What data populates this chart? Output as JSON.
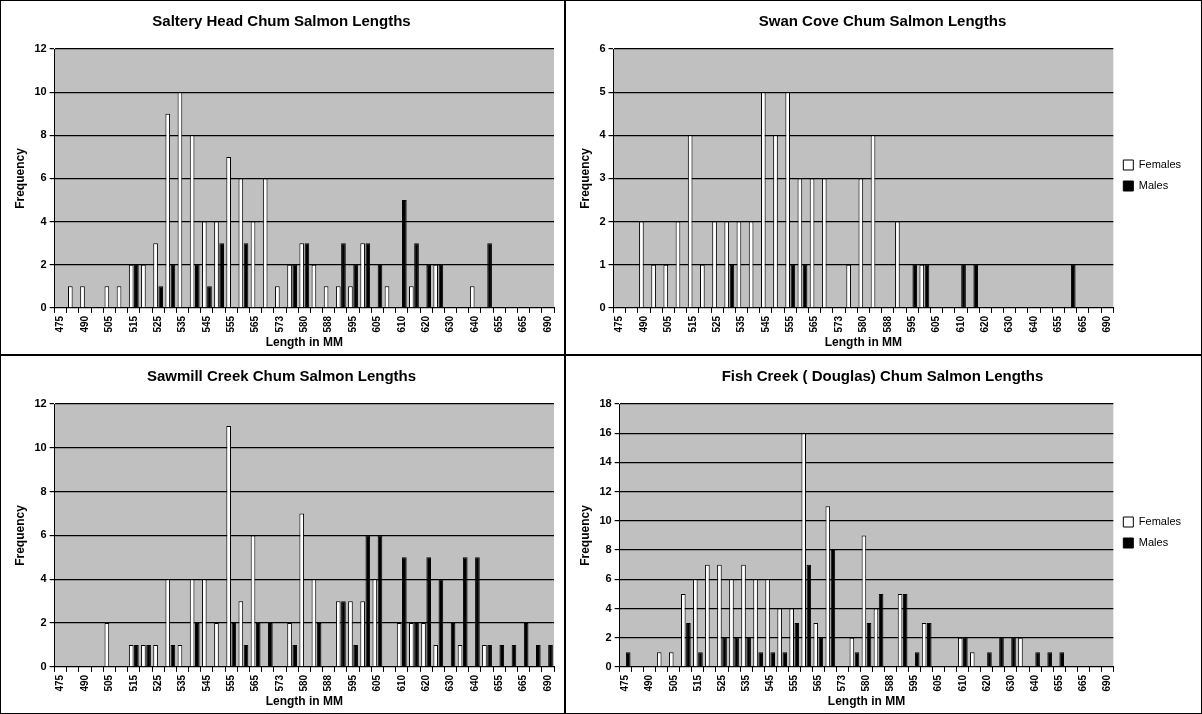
{
  "chart_data": [
    {
      "type": "bar",
      "title": "Saltery Head Chum Salmon Lengths",
      "xlabel": "Length in MM",
      "ylabel": "Frequency",
      "categories": [
        "475",
        null,
        "490",
        null,
        "505",
        null,
        "515",
        null,
        "525",
        null,
        "535",
        null,
        "545",
        null,
        "555",
        null,
        "565",
        null,
        "573",
        null,
        "580",
        null,
        "588",
        null,
        "595",
        null,
        "605",
        null,
        "610",
        null,
        "620",
        null,
        "630",
        null,
        "640",
        null,
        "655",
        null,
        "665",
        null,
        "690"
      ],
      "ylim": [
        0,
        12
      ],
      "yticks": [
        0,
        2,
        4,
        6,
        8,
        10,
        12
      ],
      "grid": "y",
      "legend": false,
      "series": [
        {
          "color": "#ffffff",
          "values": [
            0,
            1,
            1,
            0,
            1,
            1,
            2,
            2,
            3,
            9,
            10,
            8,
            4,
            4,
            7,
            6,
            4,
            6,
            1,
            2,
            3,
            2,
            1,
            1,
            1,
            3,
            0,
            1,
            0,
            1,
            0,
            2,
            0,
            0,
            1,
            0,
            0,
            0,
            0,
            0,
            0
          ]
        },
        {
          "color": "#000000",
          "values": [
            0,
            0,
            0,
            0,
            0,
            0,
            2,
            0,
            1,
            2,
            0,
            2,
            1,
            3,
            0,
            3,
            0,
            0,
            0,
            2,
            3,
            0,
            0,
            3,
            2,
            3,
            2,
            0,
            5,
            3,
            2,
            2,
            0,
            0,
            0,
            3,
            0,
            0,
            0,
            0,
            0
          ]
        }
      ]
    },
    {
      "type": "bar",
      "title": "Swan Cove Chum Salmon Lengths",
      "xlabel": "Length in MM",
      "ylabel": "Frequency",
      "categories": [
        "475",
        null,
        "490",
        null,
        "505",
        null,
        "515",
        null,
        "525",
        null,
        "535",
        null,
        "545",
        null,
        "555",
        null,
        "565",
        null,
        "573",
        null,
        "580",
        null,
        "588",
        null,
        "595",
        null,
        "605",
        null,
        "610",
        null,
        "620",
        null,
        "630",
        null,
        "640",
        null,
        "655",
        null,
        "665",
        null,
        "690"
      ],
      "ylim": [
        0,
        6
      ],
      "yticks": [
        0,
        1,
        2,
        3,
        4,
        5,
        6
      ],
      "grid": "y",
      "legend": "right",
      "series": [
        {
          "name": "Females",
          "color": "#ffffff",
          "values": [
            0,
            0,
            2,
            1,
            1,
            2,
            4,
            1,
            2,
            2,
            2,
            2,
            5,
            4,
            5,
            3,
            3,
            3,
            0,
            1,
            3,
            4,
            0,
            2,
            0,
            1,
            0,
            0,
            0,
            0,
            0,
            0,
            0,
            0,
            0,
            0,
            0,
            0,
            0,
            0,
            0
          ]
        },
        {
          "name": "Males",
          "color": "#000000",
          "values": [
            0,
            0,
            0,
            0,
            0,
            0,
            0,
            0,
            0,
            1,
            0,
            0,
            0,
            0,
            1,
            1,
            0,
            0,
            0,
            0,
            0,
            0,
            0,
            0,
            1,
            1,
            0,
            0,
            1,
            1,
            0,
            0,
            0,
            0,
            0,
            0,
            0,
            1,
            0,
            0,
            0
          ]
        }
      ]
    },
    {
      "type": "bar",
      "title": "Sawmill Creek Chum Salmon Lengths",
      "xlabel": "Length in MM",
      "ylabel": "Frequency",
      "categories": [
        "475",
        null,
        "490",
        null,
        "505",
        null,
        "515",
        null,
        "525",
        null,
        "535",
        null,
        "545",
        null,
        "555",
        null,
        "565",
        null,
        "573",
        null,
        "580",
        null,
        "588",
        null,
        "595",
        null,
        "605",
        null,
        "610",
        null,
        "620",
        null,
        "630",
        null,
        "640",
        null,
        "655",
        null,
        "665",
        null,
        "690"
      ],
      "ylim": [
        0,
        12
      ],
      "yticks": [
        0,
        2,
        4,
        6,
        8,
        10,
        12
      ],
      "grid": "y",
      "legend": false,
      "series": [
        {
          "color": "#ffffff",
          "values": [
            0,
            0,
            0,
            0,
            2,
            0,
            1,
            1,
            1,
            4,
            1,
            4,
            4,
            2,
            11,
            3,
            6,
            0,
            0,
            2,
            7,
            4,
            0,
            3,
            3,
            3,
            4,
            0,
            2,
            2,
            2,
            1,
            0,
            1,
            0,
            1,
            0,
            0,
            0,
            0,
            0
          ]
        },
        {
          "color": "#000000",
          "values": [
            0,
            0,
            0,
            0,
            0,
            0,
            1,
            1,
            0,
            1,
            0,
            2,
            0,
            0,
            2,
            1,
            2,
            2,
            0,
            1,
            0,
            2,
            0,
            3,
            1,
            6,
            6,
            0,
            5,
            2,
            5,
            4,
            2,
            5,
            5,
            1,
            1,
            1,
            2,
            1,
            1
          ]
        }
      ]
    },
    {
      "type": "bar",
      "title": "Fish Creek ( Douglas) Chum Salmon Lengths",
      "xlabel": "Length in MM",
      "ylabel": "Frequency",
      "categories": [
        "475",
        null,
        "490",
        null,
        "505",
        null,
        "515",
        null,
        "525",
        null,
        "535",
        null,
        "545",
        null,
        "555",
        null,
        "565",
        null,
        "573",
        null,
        "580",
        null,
        "588",
        null,
        "595",
        null,
        "605",
        null,
        "610",
        null,
        "620",
        null,
        "630",
        null,
        "640",
        null,
        "655",
        null,
        "665",
        null,
        "690"
      ],
      "ylim": [
        0,
        18
      ],
      "yticks": [
        0,
        2,
        4,
        6,
        8,
        10,
        12,
        14,
        16,
        18
      ],
      "grid": "y",
      "legend": "right",
      "series": [
        {
          "name": "Females",
          "color": "#ffffff",
          "values": [
            0,
            0,
            0,
            1,
            1,
            5,
            6,
            7,
            7,
            6,
            7,
            6,
            6,
            4,
            4,
            16,
            3,
            11,
            0,
            2,
            9,
            4,
            0,
            5,
            0,
            3,
            0,
            0,
            2,
            1,
            0,
            0,
            0,
            2,
            0,
            0,
            0,
            0,
            0,
            0,
            0
          ]
        },
        {
          "name": "Males",
          "color": "#000000",
          "values": [
            1,
            0,
            0,
            0,
            0,
            3,
            1,
            0,
            2,
            2,
            2,
            1,
            1,
            1,
            3,
            7,
            2,
            8,
            0,
            1,
            3,
            5,
            0,
            5,
            1,
            3,
            0,
            0,
            2,
            0,
            1,
            2,
            2,
            0,
            1,
            1,
            1,
            0,
            0,
            0,
            0
          ]
        }
      ]
    }
  ]
}
